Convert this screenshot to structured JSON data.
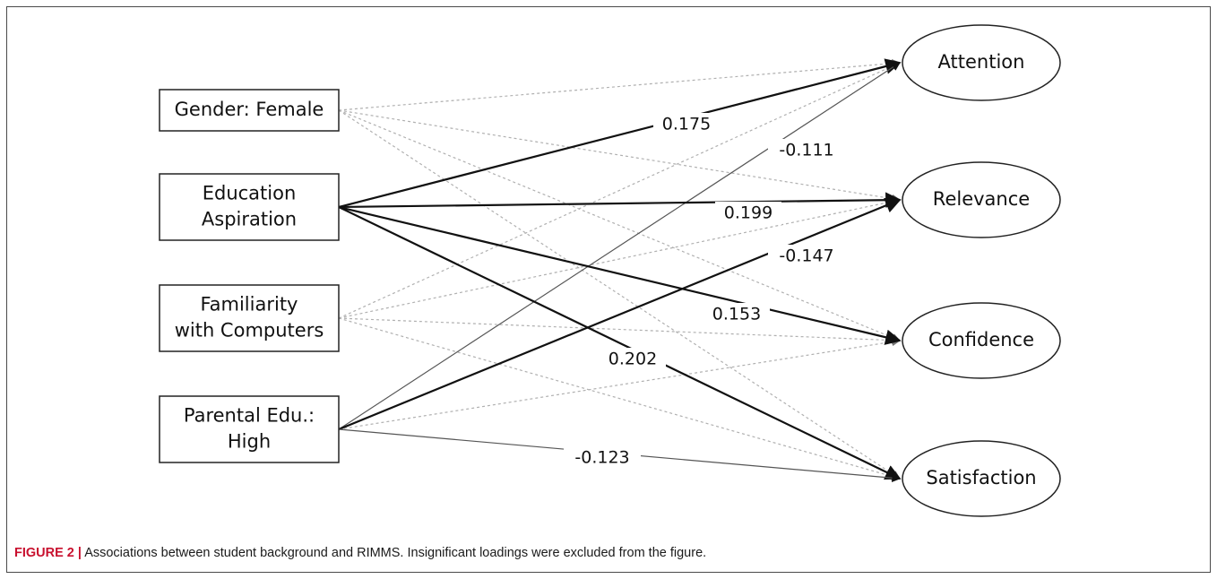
{
  "diagram": {
    "predictors": [
      {
        "id": "gender",
        "lines": [
          "Gender: Female"
        ]
      },
      {
        "id": "edu",
        "lines": [
          "Education",
          "Aspiration"
        ]
      },
      {
        "id": "fam",
        "lines": [
          "Familiarity",
          "with Computers"
        ]
      },
      {
        "id": "par",
        "lines": [
          "Parental Edu.:",
          "High"
        ]
      }
    ],
    "outcomes": [
      {
        "id": "attention",
        "label": "Attention"
      },
      {
        "id": "relevance",
        "label": "Relevance"
      },
      {
        "id": "confidence",
        "label": "Confidence"
      },
      {
        "id": "satisfaction",
        "label": "Satisfaction"
      }
    ],
    "significant_paths": [
      {
        "from": "edu",
        "to": "attention",
        "loading": "0.175",
        "strength": "strong"
      },
      {
        "from": "par",
        "to": "attention",
        "loading": "-0.111",
        "strength": "weak"
      },
      {
        "from": "edu",
        "to": "relevance",
        "loading": "0.199",
        "strength": "strong"
      },
      {
        "from": "par",
        "to": "relevance",
        "loading": "-0.147",
        "strength": "strong"
      },
      {
        "from": "edu",
        "to": "confidence",
        "loading": "0.153",
        "strength": "strong"
      },
      {
        "from": "edu",
        "to": "satisfaction",
        "loading": "0.202",
        "strength": "strong"
      },
      {
        "from": "par",
        "to": "satisfaction",
        "loading": "-0.123",
        "strength": "weak"
      }
    ],
    "insignificant_paths": [
      {
        "from": "gender",
        "to": "attention"
      },
      {
        "from": "gender",
        "to": "relevance"
      },
      {
        "from": "gender",
        "to": "confidence"
      },
      {
        "from": "gender",
        "to": "satisfaction"
      },
      {
        "from": "fam",
        "to": "attention"
      },
      {
        "from": "fam",
        "to": "relevance"
      },
      {
        "from": "fam",
        "to": "confidence"
      },
      {
        "from": "fam",
        "to": "satisfaction"
      },
      {
        "from": "edu",
        "to": "satisfaction_dashed_placeholder"
      }
    ],
    "extra_dashed_paths": [
      {
        "from": "par",
        "to": "confidence"
      }
    ],
    "colors": {
      "strong_line": "#111111",
      "weak_line": "#555555",
      "dashed_line": "#b0b0b0",
      "caption_label": "#c8102e"
    }
  },
  "caption": {
    "label": "FIGURE 2 |",
    "text": " Associations between student background and RIMMS. Insignificant loadings were excluded from the figure."
  }
}
